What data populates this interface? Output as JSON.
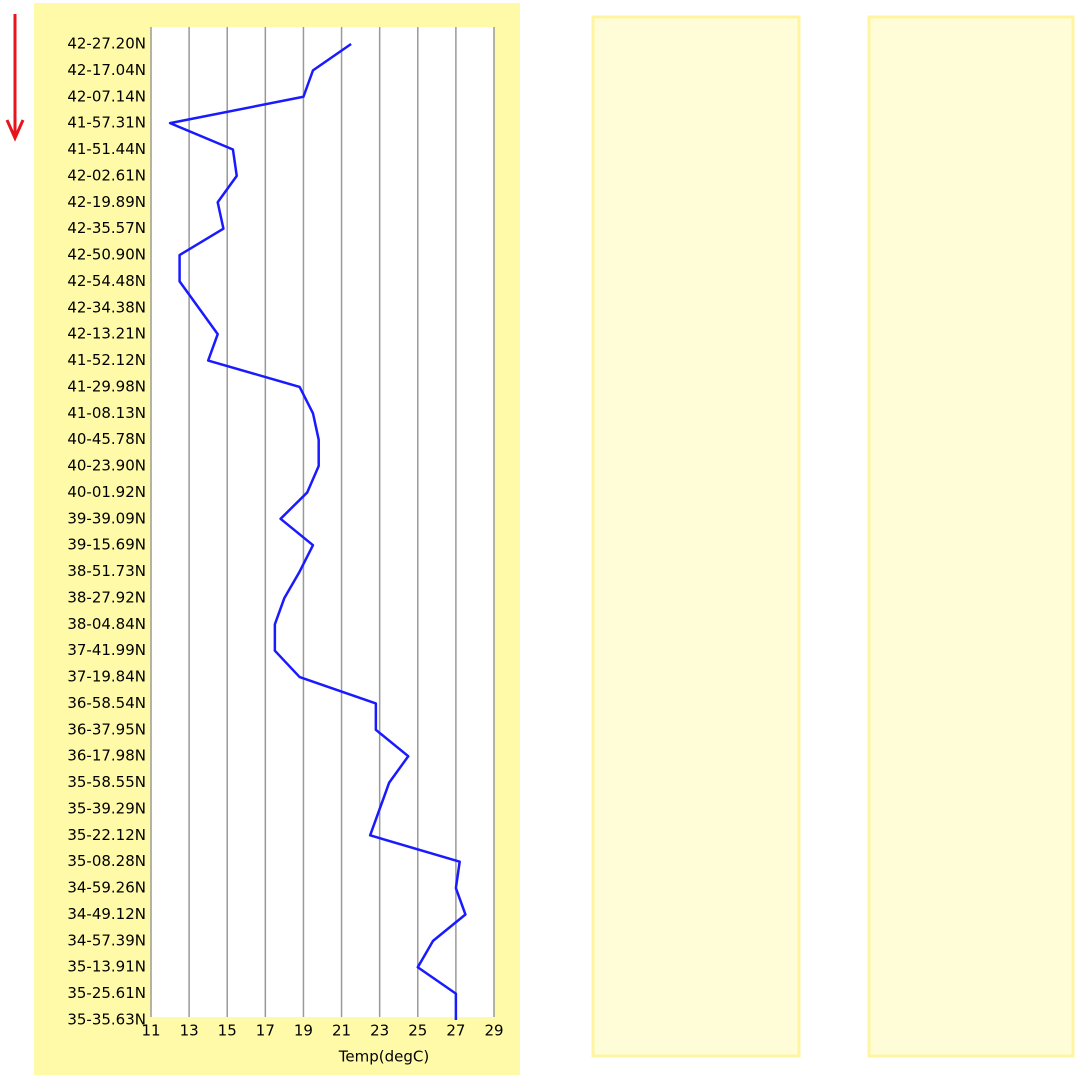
{
  "chart_data": {
    "type": "line",
    "categories": [
      "42-27.20N",
      "42-17.04N",
      "42-07.14N",
      "41-57.31N",
      "41-51.44N",
      "42-02.61N",
      "42-19.89N",
      "42-35.57N",
      "42-50.90N",
      "42-54.48N",
      "42-34.38N",
      "42-13.21N",
      "41-52.12N",
      "41-29.98N",
      "41-08.13N",
      "40-45.78N",
      "40-23.90N",
      "40-01.92N",
      "39-39.09N",
      "39-15.69N",
      "38-51.73N",
      "38-27.92N",
      "38-04.84N",
      "37-41.99N",
      "37-19.84N",
      "36-58.54N",
      "36-37.95N",
      "36-17.98N",
      "35-58.55N",
      "35-39.29N",
      "35-22.12N",
      "35-08.28N",
      "34-59.26N",
      "34-49.12N",
      "34-57.39N",
      "35-13.91N",
      "35-25.61N",
      "35-35.63N"
    ],
    "values": [
      21.5,
      19.5,
      19,
      12,
      15.3,
      15.5,
      14.5,
      14.8,
      12.5,
      12.5,
      13.5,
      14.5,
      14,
      18.8,
      19.5,
      19.8,
      19.8,
      19.2,
      17.8,
      19.5,
      18.8,
      18,
      17.5,
      17.5,
      18.8,
      22.8,
      22.8,
      24.5,
      23.5,
      23,
      22.5,
      27.2,
      27,
      27.5,
      25.8,
      25,
      27,
      27
    ],
    "color": "#1a1aff",
    "xlabel": "Temp(degC)",
    "xlim": [
      11,
      29
    ],
    "xticks": [
      11,
      13,
      15,
      17,
      19,
      21,
      23,
      25,
      27,
      29
    ],
    "grid": true
  }
}
